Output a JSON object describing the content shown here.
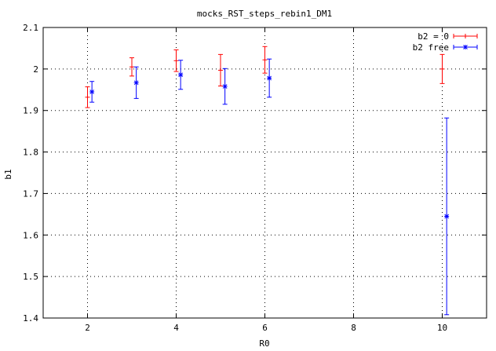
{
  "chart_data": {
    "type": "scatter",
    "title": "mocks_RST_steps_rebin1_DM1",
    "xlabel": "R0",
    "ylabel": "b1",
    "xlim": [
      1,
      11
    ],
    "ylim": [
      1.4,
      2.1
    ],
    "grid": true,
    "legend_position": "top-right",
    "xticks": [
      2,
      4,
      6,
      8,
      10
    ],
    "yticks": [
      1.4,
      1.5,
      1.6,
      1.7,
      1.8,
      1.9,
      2.0,
      2.1
    ],
    "xtick_labels": [
      "2",
      "4",
      "6",
      "8",
      "10"
    ],
    "ytick_labels": [
      "1.4",
      "1.5",
      "1.6",
      "1.7",
      "1.8",
      "1.9",
      "2",
      "2.1"
    ],
    "series": [
      {
        "name": "b2 = 0",
        "color": "#ff0000",
        "marker": "plus",
        "points": [
          {
            "x": 2,
            "y": 1.932,
            "err": 0.025
          },
          {
            "x": 3,
            "y": 2.005,
            "err": 0.022
          },
          {
            "x": 4,
            "y": 2.02,
            "err": 0.026
          },
          {
            "x": 5,
            "y": 1.997,
            "err": 0.038
          },
          {
            "x": 6,
            "y": 2.022,
            "err": 0.032
          },
          {
            "x": 10,
            "y": 2.0,
            "err": 0.035
          }
        ]
      },
      {
        "name": "b2 free",
        "color": "#0000ff",
        "marker": "star",
        "points": [
          {
            "x": 2.1,
            "y": 1.945,
            "err": 0.025
          },
          {
            "x": 3.1,
            "y": 1.967,
            "err": 0.038
          },
          {
            "x": 4.1,
            "y": 1.986,
            "err": 0.035
          },
          {
            "x": 5.1,
            "y": 1.958,
            "err": 0.043
          },
          {
            "x": 6.1,
            "y": 1.978,
            "err": 0.046
          },
          {
            "x": 10.1,
            "y": 1.645,
            "err": 0.237
          }
        ]
      }
    ]
  }
}
